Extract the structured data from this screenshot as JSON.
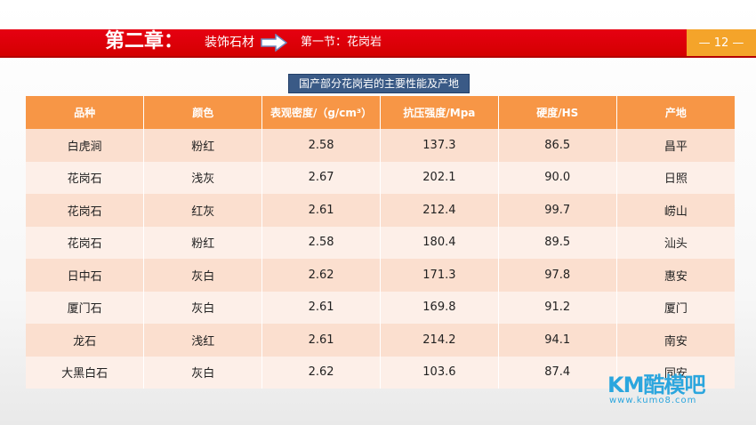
{
  "header": {
    "chapter": "第二章：",
    "subject": "装饰石材",
    "section": "第一节：花岗岩",
    "page_number": "— 12 —"
  },
  "table_caption": "国产部分花岗岩的主要性能及产地",
  "table": {
    "columns": [
      "品种",
      "颜色",
      "表观密度/（g/cm³）",
      "抗压强度/Mpa",
      "硬度/HS",
      "产地"
    ],
    "rows": [
      [
        "白虎涧",
        "粉红",
        "2.58",
        "137.3",
        "86.5",
        "昌平"
      ],
      [
        "花岗石",
        "浅灰",
        "2.67",
        "202.1",
        "90.0",
        "日照"
      ],
      [
        "花岗石",
        "红灰",
        "2.61",
        "212.4",
        "99.7",
        "崂山"
      ],
      [
        "花岗石",
        "粉红",
        "2.58",
        "180.4",
        "89.5",
        "汕头"
      ],
      [
        "日中石",
        "灰白",
        "2.62",
        "171.3",
        "97.8",
        "惠安"
      ],
      [
        "厦门石",
        "灰白",
        "2.61",
        "169.8",
        "91.2",
        "厦门"
      ],
      [
        "龙石",
        "浅红",
        "2.61",
        "214.2",
        "94.1",
        "南安"
      ],
      [
        "大黑白石",
        "灰白",
        "2.62",
        "103.6",
        "87.4",
        "同安"
      ]
    ]
  },
  "watermark": {
    "logo": "KM酷模吧",
    "url": "www.kumo8.com"
  },
  "colors": {
    "header_red": "#e60012",
    "page_box_orange": "#f4a42a",
    "table_header": "#f79646",
    "caption_blue": "#3a5a86"
  }
}
